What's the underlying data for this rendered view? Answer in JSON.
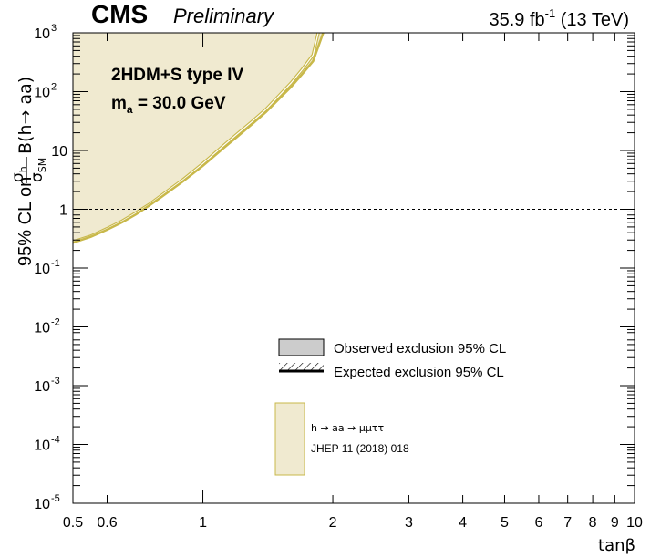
{
  "header": {
    "experiment": "CMS",
    "status": "Preliminary",
    "lumi_value": "35.9 fb",
    "lumi_exp": "-1",
    "energy": " (13 TeV)"
  },
  "annotation": {
    "model": "2HDM+S type IV",
    "mass_sym": "m",
    "mass_sub": "a",
    "mass_value": " = 30.0 GeV"
  },
  "axes": {
    "xlabel": "tanβ",
    "ylabel_prefix": "95% CL on ",
    "ylabel_num": "σ",
    "ylabel_num_sub": "h",
    "ylabel_den": "σ",
    "ylabel_den_sub": "SM",
    "ylabel_suffix": "B(h→ aa)"
  },
  "legend": {
    "observed": "Observed exclusion 95% CL",
    "expected": "Expected exclusion 95% CL",
    "analysis_line1": "h → aa → μμττ",
    "analysis_line2": "JHEP 11 (2018) 018"
  },
  "colors": {
    "fill": "#f0ead0",
    "line": "#c8b84a",
    "legend_grey": "#cccccc"
  },
  "chart_data": {
    "type": "area",
    "x_scale": "log",
    "y_scale": "log",
    "xlim": [
      0.5,
      10
    ],
    "ylim": [
      1e-05,
      1000
    ],
    "x_ticks": [
      {
        "value": 0.5,
        "label": "0.5"
      },
      {
        "value": 0.6,
        "label": "0.6"
      },
      {
        "value": 1,
        "label": "1"
      },
      {
        "value": 2,
        "label": "2"
      },
      {
        "value": 3,
        "label": "3"
      },
      {
        "value": 4,
        "label": "4"
      },
      {
        "value": 5,
        "label": "5"
      },
      {
        "value": 6,
        "label": "6"
      },
      {
        "value": 7,
        "label": "7"
      },
      {
        "value": 8,
        "label": "8"
      },
      {
        "value": 9,
        "label": "9"
      },
      {
        "value": 10,
        "label": "10"
      }
    ],
    "y_ticks": [
      {
        "value": 1e-05,
        "base": "10",
        "exp": "-5"
      },
      {
        "value": 0.0001,
        "base": "10",
        "exp": "-4"
      },
      {
        "value": 0.001,
        "base": "10",
        "exp": "-3"
      },
      {
        "value": 0.01,
        "base": "10",
        "exp": "-2"
      },
      {
        "value": 0.1,
        "base": "10",
        "exp": "-1"
      },
      {
        "value": 1,
        "base": "1",
        "exp": ""
      },
      {
        "value": 10,
        "base": "10",
        "exp": ""
      },
      {
        "value": 100,
        "base": "10",
        "exp": "2"
      },
      {
        "value": 1000,
        "base": "10",
        "exp": "3"
      }
    ],
    "reference_line": 1,
    "series": [
      {
        "name": "Observed exclusion 95% CL",
        "kind": "observed",
        "x": [
          0.5,
          0.55,
          0.6,
          0.65,
          0.7,
          0.75,
          0.8,
          0.9,
          1.0,
          1.1,
          1.2,
          1.3,
          1.4,
          1.5,
          1.6,
          1.7,
          1.8,
          1.9
        ],
        "y": [
          0.27,
          0.34,
          0.45,
          0.6,
          0.82,
          1.15,
          1.6,
          3.0,
          5.5,
          10,
          17,
          28,
          45,
          75,
          120,
          200,
          330,
          1000
        ]
      },
      {
        "name": "Expected exclusion 95% CL",
        "kind": "expected",
        "x": [
          0.5,
          0.55,
          0.6,
          0.65,
          0.7,
          0.75,
          0.8,
          0.9,
          1.0,
          1.1,
          1.2,
          1.3,
          1.4,
          1.5,
          1.6,
          1.7,
          1.8,
          1.85
        ],
        "y": [
          0.28,
          0.35,
          0.47,
          0.63,
          0.87,
          1.2,
          1.7,
          3.2,
          6.0,
          11,
          19,
          31,
          50,
          85,
          140,
          240,
          420,
          1000
        ]
      }
    ]
  }
}
